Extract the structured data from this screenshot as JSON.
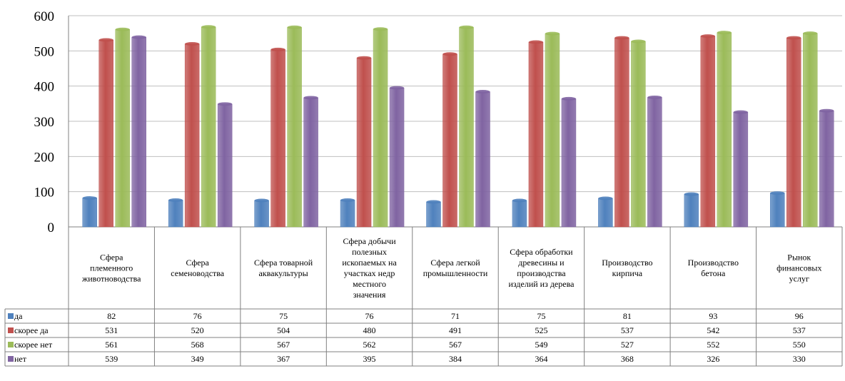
{
  "chart_data": {
    "type": "bar",
    "title": "",
    "xlabel": "",
    "ylabel": "",
    "ylim": [
      0,
      600
    ],
    "yticks": [
      0,
      100,
      200,
      300,
      400,
      500,
      600
    ],
    "grid": true,
    "legend": "data-table",
    "categories": [
      "Сфера племенного животноводства",
      "Сфера семеноводства",
      "Сфера товарной аквакультуры",
      "Сфера добычи полезных ископаемых на участках недр местного значения",
      "Сфера легкой промышленности",
      "Сфера обработки древесины и производства изделий из дерева",
      "Производство кирпича",
      "Производство бетона",
      "Рынок финансовых услуг"
    ],
    "category_lines": [
      [
        "Сфера",
        "племенного",
        "животноводства"
      ],
      [
        "Сфера",
        "семеноводства"
      ],
      [
        "Сфера товарной",
        "аквакультуры"
      ],
      [
        "Сфера добычи",
        "полезных",
        "ископаемых на",
        "участках недр",
        "местного",
        "значения"
      ],
      [
        "Сфера легкой",
        "промышленности"
      ],
      [
        "Сфера обработки",
        "древесины и",
        "производства",
        "изделий из дерева"
      ],
      [
        "Производство",
        "кирпича"
      ],
      [
        "Производство",
        "бетона"
      ],
      [
        "Рынок",
        "финансовых",
        "услуг"
      ]
    ],
    "series": [
      {
        "name": "да",
        "color": "#4F81BD",
        "values": [
          82,
          76,
          75,
          76,
          71,
          75,
          81,
          93,
          96
        ]
      },
      {
        "name": "скорее да",
        "color": "#C0504D",
        "values": [
          531,
          520,
          504,
          480,
          491,
          525,
          537,
          542,
          537
        ]
      },
      {
        "name": "скорее нет",
        "color": "#9BBB59",
        "values": [
          561,
          568,
          567,
          562,
          567,
          549,
          527,
          552,
          550
        ]
      },
      {
        "name": "нет",
        "color": "#8064A2",
        "values": [
          539,
          349,
          367,
          395,
          384,
          364,
          368,
          326,
          330
        ]
      }
    ]
  }
}
